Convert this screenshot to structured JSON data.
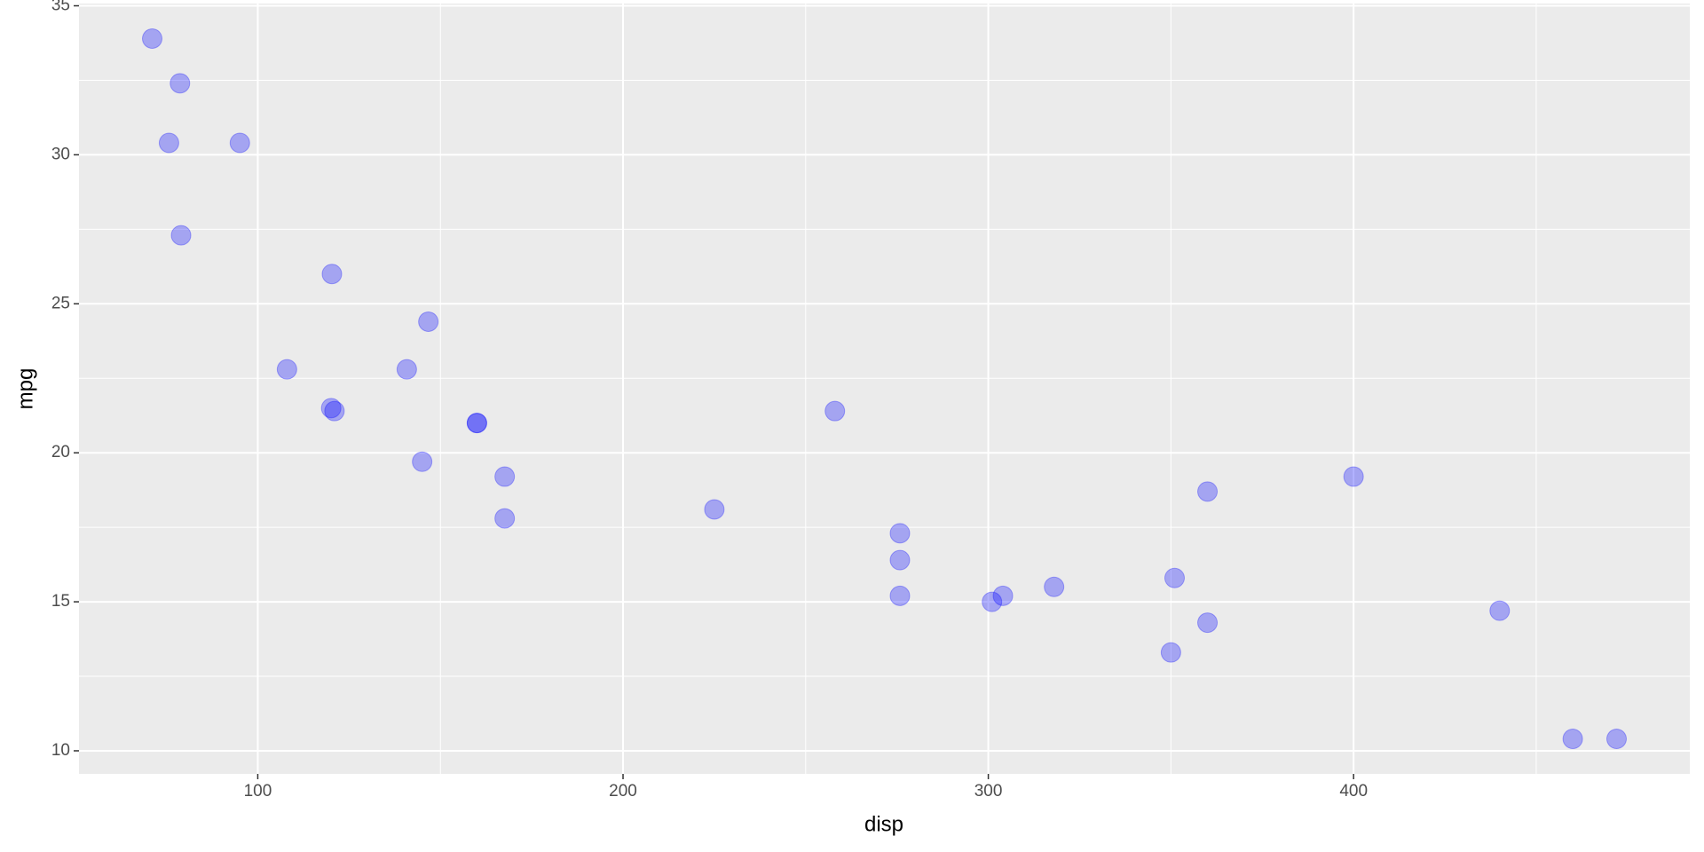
{
  "chart_data": {
    "type": "scatter",
    "x_label": "disp",
    "y_label": "mpg",
    "x": [
      160,
      160,
      108,
      258,
      360,
      225,
      360,
      146.7,
      140.8,
      167.6,
      167.6,
      275.8,
      275.8,
      275.8,
      472,
      460,
      440,
      78.7,
      75.7,
      71.1,
      120.1,
      318,
      304,
      350,
      400,
      79,
      120.3,
      95.1,
      351,
      145,
      301,
      121
    ],
    "values": [
      21.0,
      21.0,
      22.8,
      21.4,
      18.7,
      18.1,
      14.3,
      24.4,
      22.8,
      19.2,
      17.8,
      16.4,
      17.3,
      15.2,
      10.4,
      10.4,
      14.7,
      32.4,
      30.4,
      33.9,
      21.5,
      15.5,
      15.2,
      13.3,
      19.2,
      27.3,
      26.0,
      30.4,
      15.8,
      19.7,
      15.0,
      21.4
    ],
    "color": "#0000ff",
    "alpha": 0.3,
    "xlim": [
      51.055,
      492.045
    ],
    "ylim": [
      9.225,
      35.075
    ],
    "xticks": [
      100,
      200,
      300,
      400
    ],
    "yticks": [
      10,
      15,
      20,
      25,
      30,
      35
    ],
    "x_minor_ticks": [
      150,
      250,
      350,
      450
    ],
    "y_minor_ticks": [
      12.5,
      17.5,
      22.5,
      27.5,
      32.5
    ],
    "grid": true
  }
}
